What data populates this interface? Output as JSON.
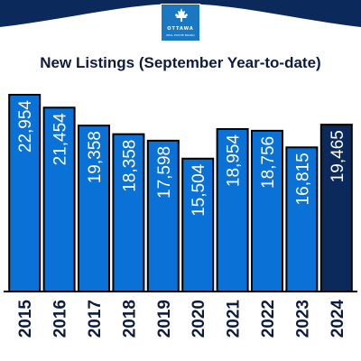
{
  "header": {
    "band_color": "#0b2a5b",
    "logo": {
      "icon": "maple-leaf-icon",
      "brand_name": "OTTAWA",
      "brand_sub": "REAL ESTATE BOARD",
      "color": "#1a78c2"
    }
  },
  "chart_data": {
    "type": "bar",
    "title": "New Listings (September Year-to-date)",
    "categories": [
      "2015",
      "2016",
      "2017",
      "2018",
      "2019",
      "2020",
      "2021",
      "2022",
      "2023",
      "2024"
    ],
    "values": [
      22954,
      21454,
      19358,
      18358,
      17598,
      15504,
      18954,
      18756,
      16815,
      19465
    ],
    "value_labels": [
      "22,954",
      "21,454",
      "19,358",
      "18,358",
      "17,598",
      "15,504",
      "18,954",
      "18,756",
      "16,815",
      "19,465"
    ],
    "colors": {
      "default": "#0a72d6",
      "highlight": "#0b2a5b",
      "highlight_index": 9
    },
    "xlabel": "",
    "ylabel": "",
    "ylim": [
      0,
      25000
    ],
    "grid": false,
    "legend": "none",
    "label_orientation": "vertical, inside bar top"
  }
}
